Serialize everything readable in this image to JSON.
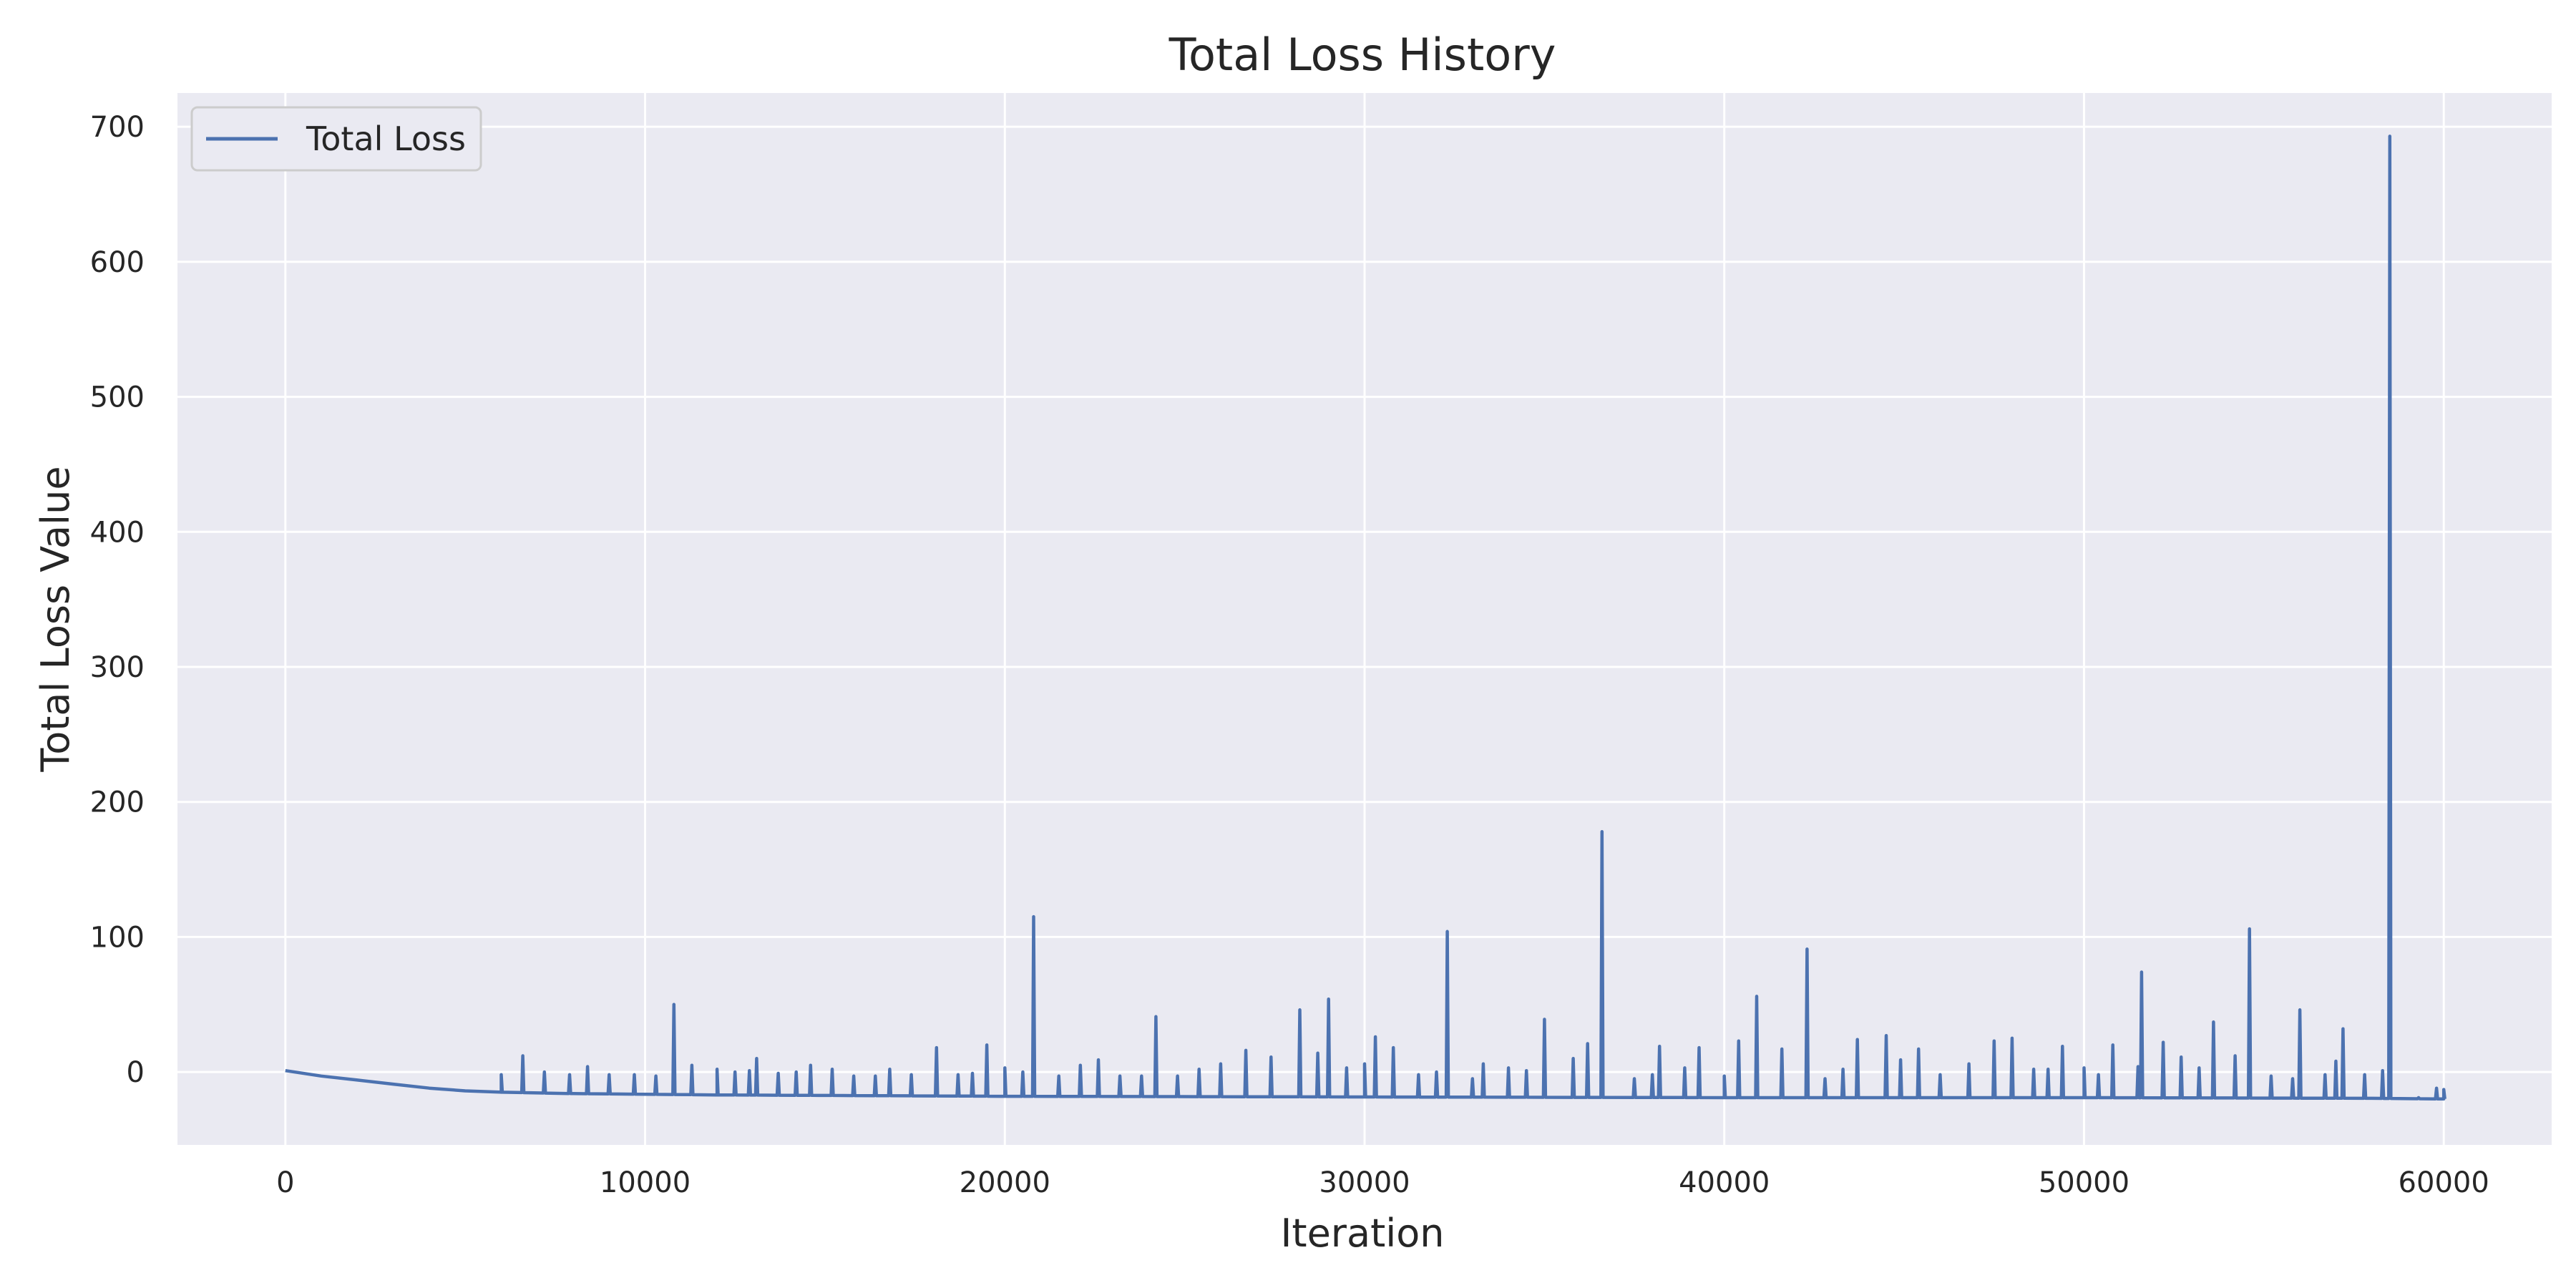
{
  "chart_data": {
    "type": "line",
    "title": "Total Loss History",
    "xlabel": "Iteration",
    "ylabel": "Total Loss Value",
    "xlim": [
      -3000,
      63000
    ],
    "ylim": [
      -54,
      725
    ],
    "xticks": [
      0,
      10000,
      20000,
      30000,
      40000,
      50000,
      60000
    ],
    "yticks": [
      0,
      100,
      200,
      300,
      400,
      500,
      600,
      700
    ],
    "grid": true,
    "legend": "top-left",
    "colors": {
      "background": "#eaeaf2",
      "grid": "#ffffff",
      "line": "#4c72b0"
    },
    "series": [
      {
        "name": "Total Loss",
        "baseline": [
          [
            0,
            1
          ],
          [
            1000,
            -3
          ],
          [
            2000,
            -6
          ],
          [
            3000,
            -9
          ],
          [
            4000,
            -12
          ],
          [
            5000,
            -14
          ],
          [
            6000,
            -15
          ],
          [
            8000,
            -16
          ],
          [
            12000,
            -17
          ],
          [
            20000,
            -18
          ],
          [
            30000,
            -18.5
          ],
          [
            40000,
            -19
          ],
          [
            50000,
            -19
          ],
          [
            58000,
            -19.5
          ],
          [
            60000,
            -20
          ]
        ],
        "spikes": [
          [
            6000,
            -2
          ],
          [
            6600,
            12
          ],
          [
            7200,
            0
          ],
          [
            7900,
            -2
          ],
          [
            8400,
            4
          ],
          [
            9000,
            -2
          ],
          [
            9700,
            -2
          ],
          [
            10300,
            -3
          ],
          [
            10800,
            50
          ],
          [
            11300,
            5
          ],
          [
            12000,
            2
          ],
          [
            12500,
            0
          ],
          [
            12900,
            1
          ],
          [
            13100,
            10
          ],
          [
            13700,
            -1
          ],
          [
            14200,
            0
          ],
          [
            14600,
            5
          ],
          [
            15200,
            2
          ],
          [
            15800,
            -3
          ],
          [
            16400,
            -3
          ],
          [
            16800,
            2
          ],
          [
            17400,
            -2
          ],
          [
            18100,
            18
          ],
          [
            18700,
            -2
          ],
          [
            19100,
            -1
          ],
          [
            19500,
            20
          ],
          [
            20000,
            3
          ],
          [
            20500,
            0
          ],
          [
            20800,
            115
          ],
          [
            21500,
            -3
          ],
          [
            22100,
            5
          ],
          [
            22600,
            9
          ],
          [
            23200,
            -3
          ],
          [
            23800,
            -3
          ],
          [
            24200,
            41
          ],
          [
            24800,
            -3
          ],
          [
            25400,
            2
          ],
          [
            26000,
            6
          ],
          [
            26700,
            16
          ],
          [
            27400,
            11
          ],
          [
            28200,
            46
          ],
          [
            28700,
            14
          ],
          [
            29000,
            54
          ],
          [
            29500,
            3
          ],
          [
            30000,
            6
          ],
          [
            30300,
            26
          ],
          [
            30800,
            18
          ],
          [
            31500,
            -2
          ],
          [
            32000,
            0
          ],
          [
            32300,
            104
          ],
          [
            33000,
            -5
          ],
          [
            33300,
            6
          ],
          [
            34000,
            3
          ],
          [
            34500,
            1
          ],
          [
            35000,
            39
          ],
          [
            35800,
            10
          ],
          [
            36200,
            21
          ],
          [
            36600,
            178
          ],
          [
            37500,
            -5
          ],
          [
            38000,
            -2
          ],
          [
            38200,
            19
          ],
          [
            38900,
            3
          ],
          [
            39300,
            18
          ],
          [
            40000,
            -3
          ],
          [
            40400,
            23
          ],
          [
            40900,
            56
          ],
          [
            41600,
            17
          ],
          [
            42300,
            91
          ],
          [
            42800,
            -5
          ],
          [
            43300,
            2
          ],
          [
            43700,
            24
          ],
          [
            44500,
            27
          ],
          [
            44900,
            9
          ],
          [
            45400,
            17
          ],
          [
            46000,
            -2
          ],
          [
            46800,
            6
          ],
          [
            47500,
            23
          ],
          [
            48000,
            25
          ],
          [
            48600,
            2
          ],
          [
            49000,
            2
          ],
          [
            49400,
            19
          ],
          [
            50000,
            3
          ],
          [
            50400,
            -2
          ],
          [
            50800,
            20
          ],
          [
            51500,
            4
          ],
          [
            51600,
            74
          ],
          [
            52200,
            22
          ],
          [
            52700,
            11
          ],
          [
            53200,
            3
          ],
          [
            53600,
            37
          ],
          [
            54200,
            12
          ],
          [
            54600,
            106
          ],
          [
            55200,
            -3
          ],
          [
            55800,
            -5
          ],
          [
            56000,
            46
          ],
          [
            56700,
            -2
          ],
          [
            57000,
            8
          ],
          [
            57200,
            32
          ],
          [
            57800,
            -2
          ],
          [
            58300,
            1
          ],
          [
            58500,
            693
          ],
          [
            59300,
            -19
          ],
          [
            59800,
            -12
          ],
          [
            60000,
            -13
          ]
        ]
      }
    ]
  }
}
